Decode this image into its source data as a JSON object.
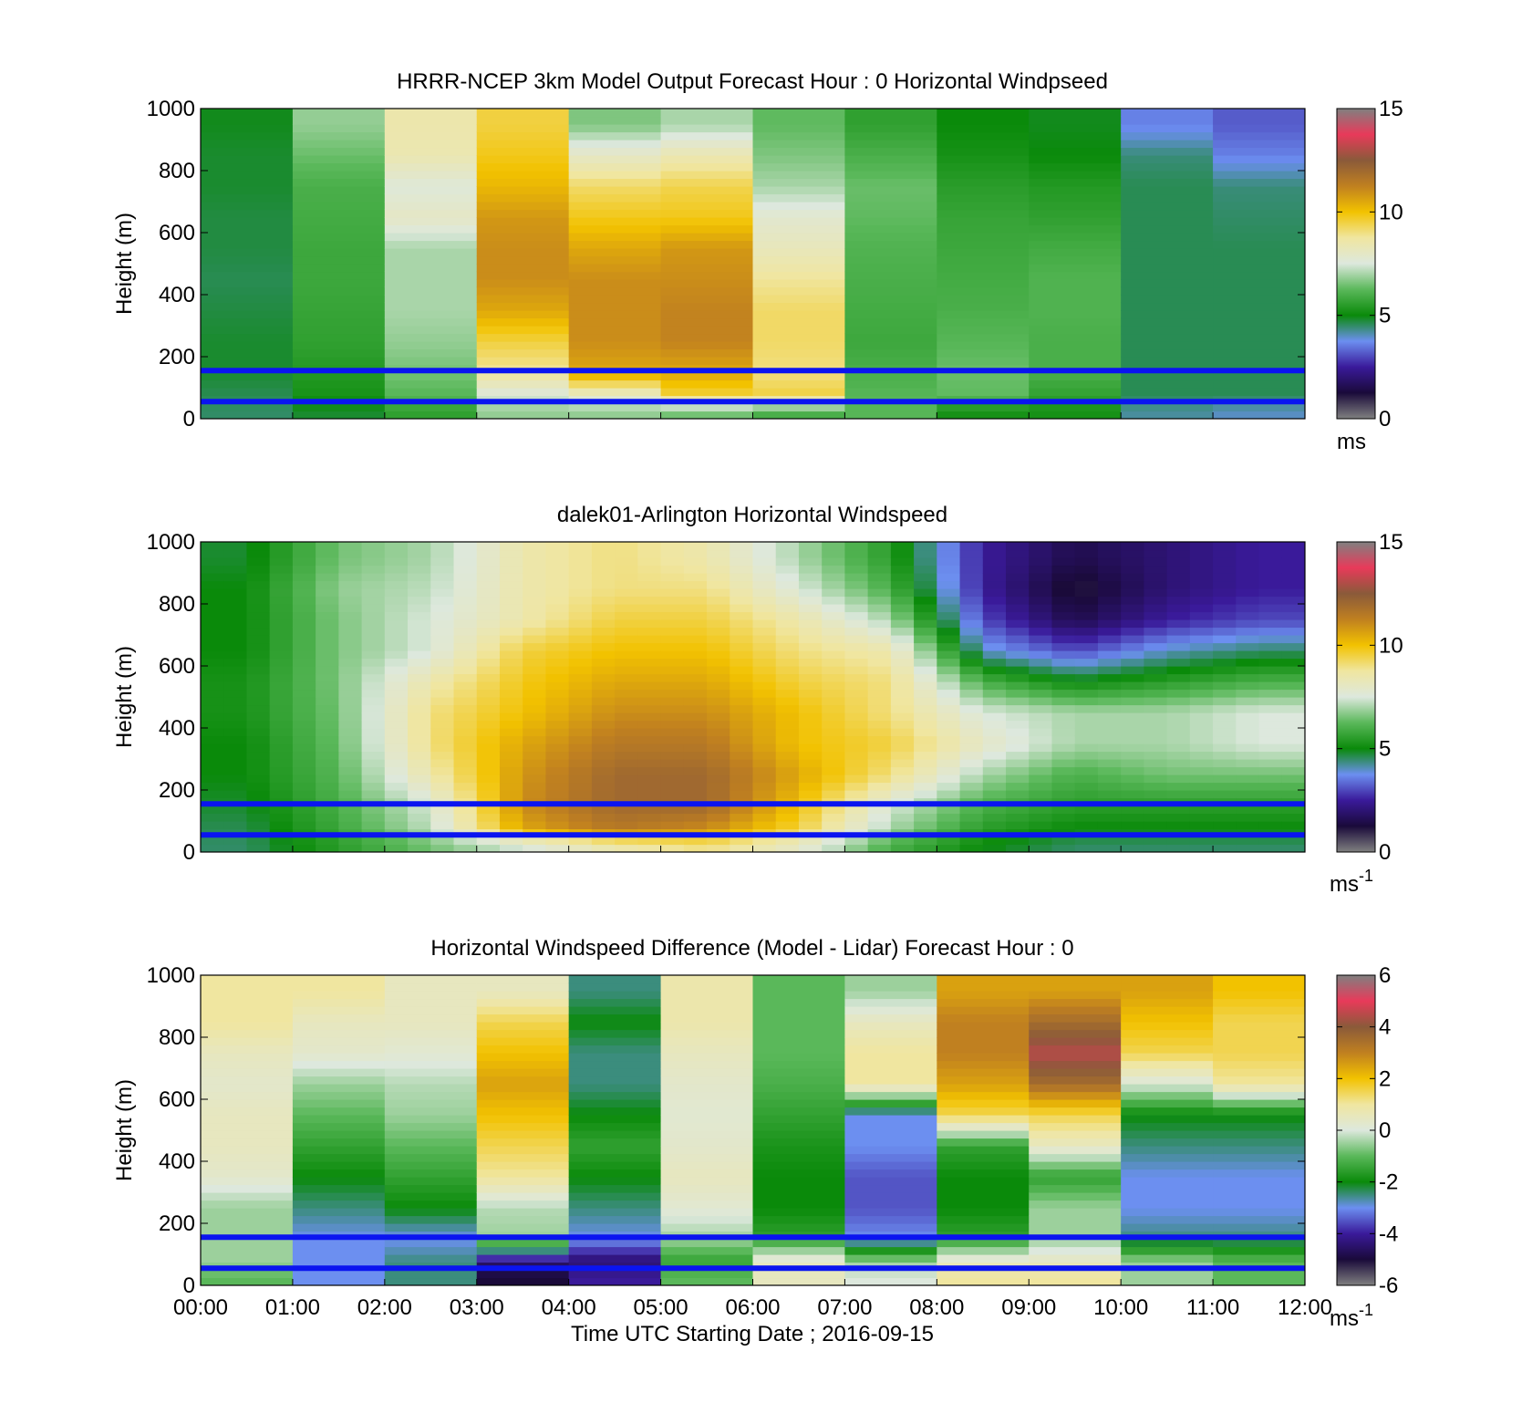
{
  "colors": {
    "blue_line": "#0a14f0",
    "windspeed_stops": [
      "#808080",
      "#1a0a3a",
      "#3a1a9a",
      "#6c8ff0",
      "#0a8a0a",
      "#5ab85a",
      "#dde8dd",
      "#f0e6a0",
      "#f2c200",
      "#c08020",
      "#8a5a3a",
      "#e83a5a",
      "#808080"
    ],
    "difference_stops": [
      "#808080",
      "#1a0a3a",
      "#3a1a9a",
      "#6c8ff0",
      "#0a8a0a",
      "#5ab85a",
      "#dde8dd",
      "#f0e6a0",
      "#f2c200",
      "#c08020",
      "#8a5a3a",
      "#e83a5a",
      "#808080"
    ]
  },
  "chart_data": [
    {
      "type": "heatmap",
      "title": "HRRR-NCEP 3km Model Output   Forecast Hour : 0 Horizontal Windpseed",
      "ylabel": "Height (m)",
      "xlabel": "",
      "ylim": [
        0,
        1000
      ],
      "yticks": [
        "0",
        "200",
        "400",
        "600",
        "800",
        "1000"
      ],
      "xlim": [
        0,
        12
      ],
      "colorbar": {
        "ticks": [
          "0",
          "5",
          "10",
          "15"
        ],
        "range": [
          0,
          15
        ],
        "unit": "ms",
        "unit_sup": ""
      },
      "reference_lines_m": [
        155,
        55
      ],
      "x_centers_hours": [
        0.5,
        1.5,
        2.5,
        3.5,
        4.5,
        5.5,
        6.5,
        7.5,
        8.5,
        9.5,
        10.5,
        11.5
      ],
      "height_levels_m": [
        25,
        75,
        150,
        250,
        350,
        450,
        550,
        650,
        750,
        850,
        950
      ],
      "values_ms": [
        [
          4.5,
          4.8,
          5.6,
          6.8,
          6.8,
          6.5,
          6.0,
          6.2,
          5.2,
          5.2,
          4.2,
          4.0
        ],
        [
          4.6,
          5.2,
          6.2,
          7.5,
          8.0,
          9.5,
          9.5,
          6.2,
          6.3,
          5.6,
          4.6,
          4.6
        ],
        [
          4.8,
          5.4,
          6.5,
          8.8,
          10.5,
          10.5,
          9.0,
          6.0,
          6.4,
          6.0,
          4.6,
          4.6
        ],
        [
          4.8,
          5.6,
          6.8,
          9.5,
          11.0,
          11.2,
          9.2,
          5.8,
          6.2,
          6.0,
          4.6,
          4.6
        ],
        [
          4.7,
          5.7,
          7.0,
          10.5,
          11.0,
          11.2,
          9.2,
          5.9,
          6.0,
          6.1,
          4.6,
          4.6
        ],
        [
          4.6,
          5.8,
          7.0,
          11.0,
          11.0,
          11.0,
          8.8,
          6.0,
          5.9,
          6.1,
          4.6,
          4.6
        ],
        [
          4.7,
          5.8,
          7.0,
          11.0,
          10.5,
          10.8,
          8.2,
          6.1,
          5.8,
          5.9,
          4.6,
          4.6
        ],
        [
          4.7,
          5.9,
          8.0,
          10.8,
          9.8,
          9.8,
          7.8,
          6.3,
          5.7,
          5.6,
          4.6,
          4.5
        ],
        [
          4.8,
          6.0,
          7.6,
          10.2,
          9.2,
          9.4,
          7.0,
          6.4,
          5.5,
          5.4,
          4.6,
          4.4
        ],
        [
          4.8,
          6.4,
          8.4,
          9.8,
          8.0,
          8.4,
          6.6,
          6.0,
          5.2,
          5.0,
          4.4,
          3.6
        ],
        [
          4.9,
          6.8,
          8.5,
          9.5,
          6.6,
          7.0,
          6.3,
          5.6,
          5.0,
          4.9,
          3.6,
          3.2
        ]
      ]
    },
    {
      "type": "heatmap",
      "title": "dalek01-Arlington  Horizontal Windspeed",
      "ylabel": "Height (m)",
      "xlabel": "",
      "ylim": [
        0,
        1000
      ],
      "yticks": [
        "0",
        "200",
        "400",
        "600",
        "800",
        "1000"
      ],
      "xlim": [
        0,
        12
      ],
      "colorbar": {
        "ticks": [
          "0",
          "5",
          "10",
          "15"
        ],
        "range": [
          0,
          15
        ],
        "unit": "ms",
        "unit_sup": "-1"
      },
      "reference_lines_m": [
        155,
        55
      ],
      "x_centers_hours": [
        0.5,
        1.5,
        2.5,
        3.5,
        4.5,
        5.5,
        6.5,
        7.5,
        8.5,
        9.5,
        10.5,
        11.5
      ],
      "height_levels_m": [
        25,
        75,
        150,
        250,
        350,
        450,
        550,
        650,
        750,
        850,
        950
      ],
      "values_ms": [
        [
          4.5,
          5.5,
          6.5,
          7.5,
          8.5,
          9.0,
          8.0,
          6.0,
          5.0,
          4.5,
          4.5,
          4.5
        ],
        [
          4.6,
          5.8,
          7.2,
          10.5,
          11.5,
          11.0,
          9.5,
          7.0,
          5.5,
          5.0,
          5.0,
          5.0
        ],
        [
          4.8,
          6.0,
          7.5,
          11.0,
          12.0,
          12.0,
          10.0,
          7.5,
          6.0,
          5.5,
          5.5,
          5.5
        ],
        [
          5.0,
          6.2,
          8.5,
          10.8,
          12.0,
          12.0,
          10.5,
          9.0,
          7.0,
          6.0,
          6.5,
          6.5
        ],
        [
          5.0,
          6.4,
          9.0,
          10.5,
          11.5,
          11.5,
          10.0,
          9.5,
          8.0,
          7.0,
          7.0,
          7.5
        ],
        [
          5.2,
          6.5,
          9.0,
          10.0,
          11.0,
          11.0,
          10.0,
          9.0,
          7.5,
          7.0,
          7.0,
          7.5
        ],
        [
          5.2,
          6.6,
          8.5,
          9.8,
          10.5,
          10.5,
          9.5,
          9.0,
          6.0,
          5.0,
          5.5,
          6.0
        ],
        [
          5.0,
          6.6,
          7.5,
          9.5,
          10.0,
          10.0,
          9.0,
          8.5,
          4.0,
          3.0,
          4.0,
          4.5
        ],
        [
          5.0,
          6.6,
          7.5,
          8.5,
          9.5,
          9.5,
          8.5,
          7.0,
          3.0,
          1.5,
          2.5,
          3.0
        ],
        [
          5.0,
          6.8,
          7.2,
          8.5,
          9.0,
          9.0,
          7.5,
          6.0,
          2.5,
          1.0,
          2.0,
          2.5
        ],
        [
          4.8,
          6.5,
          7.0,
          8.5,
          9.0,
          8.5,
          7.0,
          5.5,
          2.5,
          1.5,
          2.0,
          2.5
        ]
      ]
    },
    {
      "type": "heatmap",
      "title": "Horizontal Windspeed Difference (Model - Lidar) Forecast Hour : 0",
      "ylabel": "Height (m)",
      "xlabel": "Time UTC  Starting Date ; 2016-09-15",
      "ylim": [
        0,
        1000
      ],
      "yticks": [
        "0",
        "200",
        "400",
        "600",
        "800",
        "1000"
      ],
      "xlim": [
        0,
        12
      ],
      "xticks": [
        "00:00",
        "01:00",
        "02:00",
        "03:00",
        "04:00",
        "05:00",
        "06:00",
        "07:00",
        "08:00",
        "09:00",
        "10:00",
        "11:00",
        "12:00"
      ],
      "colorbar": {
        "ticks": [
          "-6",
          "-4",
          "-2",
          "0",
          "2",
          "4",
          "6"
        ],
        "range": [
          -6,
          6
        ],
        "unit": "ms",
        "unit_sup": "-1"
      },
      "reference_lines_m": [
        155,
        55
      ],
      "x_centers_hours": [
        0.5,
        1.5,
        2.5,
        3.5,
        4.5,
        5.5,
        6.5,
        7.5,
        8.5,
        9.5,
        10.5,
        11.5
      ],
      "height_levels_m": [
        25,
        75,
        150,
        250,
        350,
        450,
        550,
        650,
        750,
        850,
        950
      ],
      "values_ms": [
        [
          -1.0,
          -3.0,
          -2.5,
          -5.0,
          -4.0,
          -1.0,
          0.5,
          0.0,
          1.0,
          1.0,
          -0.5,
          -1.0
        ],
        [
          -0.5,
          -3.0,
          -2.5,
          -4.5,
          -4.5,
          -1.5,
          0.5,
          -0.5,
          0.5,
          0.5,
          -0.5,
          -1.0
        ],
        [
          -0.5,
          -3.0,
          -3.0,
          -0.5,
          -3.0,
          -0.5,
          -1.5,
          -3.0,
          -1.5,
          -0.5,
          -2.5,
          -2.5
        ],
        [
          -0.5,
          -2.5,
          -2.0,
          -0.3,
          -2.5,
          0.2,
          -2.0,
          -3.5,
          -2.0,
          -0.5,
          -3.0,
          -3.0
        ],
        [
          0.3,
          -2.0,
          -1.5,
          1.0,
          -2.0,
          0.5,
          -2.0,
          -3.5,
          -2.0,
          -1.5,
          -3.0,
          -3.0
        ],
        [
          0.5,
          -1.5,
          -1.0,
          1.5,
          -1.5,
          0.3,
          -1.8,
          -3.0,
          -1.5,
          0.5,
          -2.5,
          -2.5
        ],
        [
          0.5,
          -1.0,
          -0.5,
          2.0,
          -2.0,
          0.2,
          -1.5,
          -3.0,
          1.5,
          1.5,
          -2.0,
          -2.0
        ],
        [
          0.3,
          -0.5,
          -0.3,
          2.5,
          -2.5,
          0.3,
          -1.2,
          1.0,
          2.5,
          3.5,
          0.0,
          1.0
        ],
        [
          0.5,
          0.3,
          0.2,
          2.0,
          -2.5,
          0.5,
          -1.0,
          1.0,
          3.0,
          4.5,
          1.5,
          1.5
        ],
        [
          1.0,
          0.5,
          0.5,
          1.5,
          -2.0,
          0.8,
          -1.0,
          0.5,
          3.0,
          3.5,
          2.0,
          1.5
        ],
        [
          1.0,
          1.0,
          0.5,
          0.5,
          -2.5,
          0.8,
          -1.0,
          -0.5,
          2.5,
          2.5,
          2.5,
          2.0
        ]
      ]
    }
  ]
}
